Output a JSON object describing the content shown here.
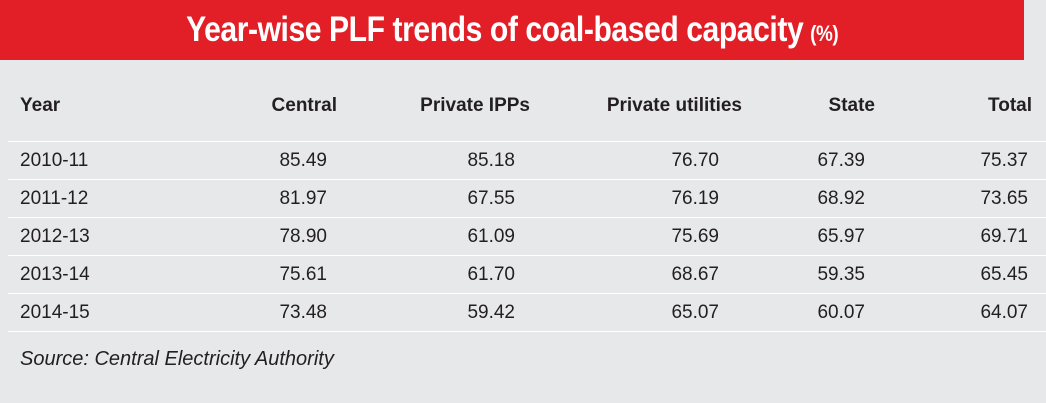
{
  "header": {
    "title": "Year-wise PLF trends of coal-based capacity",
    "unit": "(%)"
  },
  "table": {
    "columns": [
      "Year",
      "Central",
      "Private IPPs",
      "Private utilities",
      "State",
      "Total"
    ],
    "rows": [
      [
        "2010-11",
        "85.49",
        "85.18",
        "76.70",
        "67.39",
        "75.37"
      ],
      [
        "2011-12",
        "81.97",
        "67.55",
        "76.19",
        "68.92",
        "73.65"
      ],
      [
        "2012-13",
        "78.90",
        "61.09",
        "75.69",
        "65.97",
        "69.71"
      ],
      [
        "2013-14",
        "75.61",
        "61.70",
        "68.67",
        "59.35",
        "65.45"
      ],
      [
        "2014-15",
        "73.48",
        "59.42",
        "65.07",
        "60.07",
        "64.07"
      ]
    ]
  },
  "footer": {
    "source": "Source: Central Electricity Authority"
  },
  "colors": {
    "banner": "#e21f26",
    "background": "#e7e8e9"
  }
}
